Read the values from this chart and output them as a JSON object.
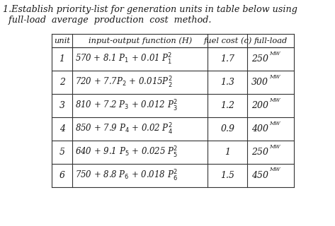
{
  "title_line1": "1.Establish priority-list for generation units in table below using",
  "title_line2": "  full-load  average  production  cost  method.",
  "col_headers": [
    "unit",
    "input-output function (H)",
    "fuel cost (c)",
    "full-load"
  ],
  "rows": [
    {
      "unit": "1",
      "H": "570 + 8.1 P$_1$ + 0.01 P$_1^2$",
      "c": "1.7",
      "fl": "250"
    },
    {
      "unit": "2",
      "H": "720 + 7.7P$_2$ + 0.015P$_2^2$",
      "c": "1.3",
      "fl": "300"
    },
    {
      "unit": "3",
      "H": "810 + 7.2 P$_3$ + 0.012 P$_3^2$",
      "c": "1.2",
      "fl": "200"
    },
    {
      "unit": "4",
      "H": "850 + 7.9 P$_4$ + 0.02 P$_4^2$",
      "c": "0.9",
      "fl": "400"
    },
    {
      "unit": "5",
      "H": "640 + 9.1 P$_5$ + 0.025 P$_5^2$",
      "c": "1",
      "fl": "250"
    },
    {
      "unit": "6",
      "H": "750 + 8.8 P$_6$ + 0.018 P$_6^2$",
      "c": "1.5",
      "fl": "450"
    }
  ],
  "bg_color": "#ffffff",
  "text_color": "#1a1a1a",
  "line_color": "#333333",
  "title_fontsize": 9.2,
  "header_fontsize": 8.2,
  "body_fontsize": 9.0,
  "mw_fontsize": 5.5
}
